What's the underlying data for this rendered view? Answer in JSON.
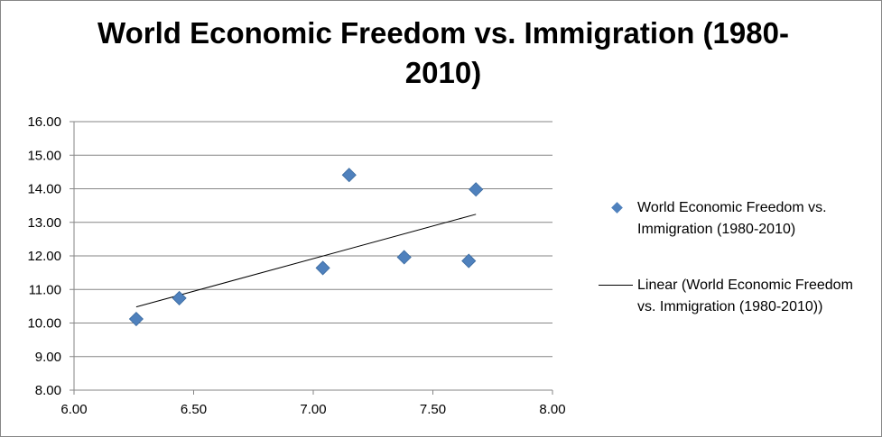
{
  "chart_data": {
    "type": "scatter",
    "title": "World Economic Freedom vs. Immigration (1980-2010)",
    "xlabel": "",
    "ylabel": "",
    "xlim": [
      6.0,
      8.0
    ],
    "ylim": [
      8.0,
      16.0
    ],
    "x_ticks": [
      "6.00",
      "6.50",
      "7.00",
      "7.50",
      "8.00"
    ],
    "y_ticks": [
      "8.00",
      "9.00",
      "10.00",
      "11.00",
      "12.00",
      "13.00",
      "14.00",
      "15.00",
      "16.00"
    ],
    "grid": "horizontal",
    "legend_position": "right",
    "series": [
      {
        "name": "World Economic Freedom vs. Immigration (1980-2010)",
        "marker": "diamond",
        "color": "#4F81BD",
        "points": [
          {
            "x": 6.26,
            "y": 10.12
          },
          {
            "x": 6.44,
            "y": 10.74
          },
          {
            "x": 7.04,
            "y": 11.64
          },
          {
            "x": 7.15,
            "y": 14.41
          },
          {
            "x": 7.38,
            "y": 11.96
          },
          {
            "x": 7.65,
            "y": 11.85
          },
          {
            "x": 7.68,
            "y": 13.98
          }
        ]
      }
    ],
    "trendline": {
      "name": "Linear (World Economic Freedom vs. Immigration (1980-2010))",
      "type": "linear",
      "color": "#000000",
      "start": {
        "x": 6.26,
        "y": 10.48
      },
      "end": {
        "x": 7.68,
        "y": 13.24
      }
    }
  }
}
